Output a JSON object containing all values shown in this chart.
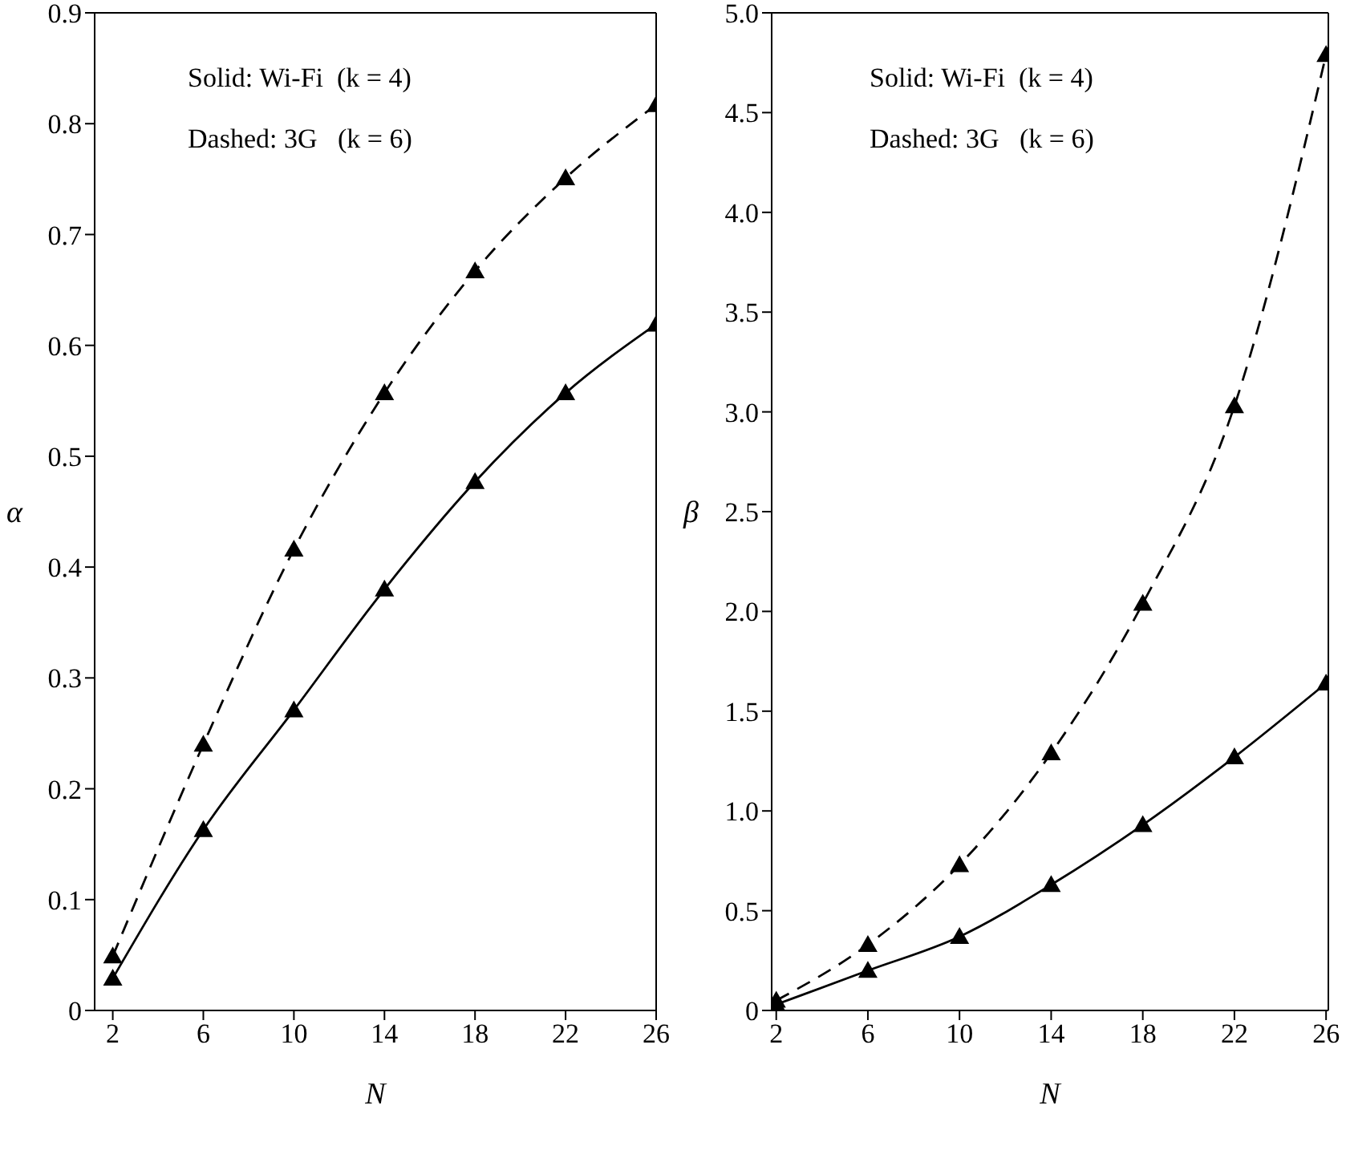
{
  "chart_data": [
    {
      "type": "line",
      "x": [
        2,
        6,
        10,
        14,
        18,
        22,
        26
      ],
      "xlim": [
        1.2,
        26
      ],
      "xticks": [
        2,
        6,
        10,
        14,
        18,
        22,
        26
      ],
      "ylim": [
        0,
        0.9
      ],
      "yticks": [
        0,
        0.1,
        0.2,
        0.3,
        0.4,
        0.5,
        0.6,
        0.7,
        0.8,
        0.9
      ],
      "xlabel": "N",
      "ylabel": "α",
      "marker": "triangle",
      "grid": false,
      "legend": false,
      "annotations": [
        "Solid: Wi-Fi  (k = 4)",
        "Dashed: 3G   (k = 6)"
      ],
      "series": [
        {
          "color": "#000000",
          "line_style": "dashed",
          "values": [
            0.049,
            0.24,
            0.416,
            0.557,
            0.667,
            0.751,
            0.817
          ]
        },
        {
          "color": "#000000",
          "line_style": "solid",
          "values": [
            0.029,
            0.163,
            0.271,
            0.38,
            0.477,
            0.557,
            0.619
          ]
        }
      ]
    },
    {
      "type": "line",
      "x": [
        2,
        6,
        10,
        14,
        18,
        22,
        26
      ],
      "xlim": [
        1.8,
        26.1
      ],
      "xticks": [
        2,
        6,
        10,
        14,
        18,
        22,
        26
      ],
      "ylim": [
        0,
        5
      ],
      "yticks": [
        0,
        {
          "value": 0.5,
          "label": "0.5"
        },
        {
          "value": 1,
          "label": "1.0"
        },
        {
          "value": 1.5,
          "label": "1.5"
        },
        {
          "value": 2,
          "label": "2.0"
        },
        {
          "value": 2.5,
          "label": "2.5"
        },
        {
          "value": 3,
          "label": "3.0"
        },
        {
          "value": 3.5,
          "label": "3.5"
        },
        {
          "value": 4,
          "label": "4.0"
        },
        {
          "value": 4.5,
          "label": "4.5"
        },
        {
          "value": 5,
          "label": "5.0"
        }
      ],
      "xlabel": "N",
      "ylabel": "β",
      "marker": "triangle",
      "grid": false,
      "legend": false,
      "annotations": [
        "Solid: Wi-Fi  (k = 4)",
        "Dashed: 3G   (k = 6)"
      ],
      "series": [
        {
          "color": "#000000",
          "line_style": "dashed",
          "values": [
            0.05,
            0.33,
            0.73,
            1.29,
            2.04,
            3.03,
            4.79
          ]
        },
        {
          "color": "#000000",
          "line_style": "solid",
          "values": [
            0.03,
            0.2,
            0.37,
            0.63,
            0.93,
            1.27,
            1.64
          ]
        }
      ]
    }
  ]
}
